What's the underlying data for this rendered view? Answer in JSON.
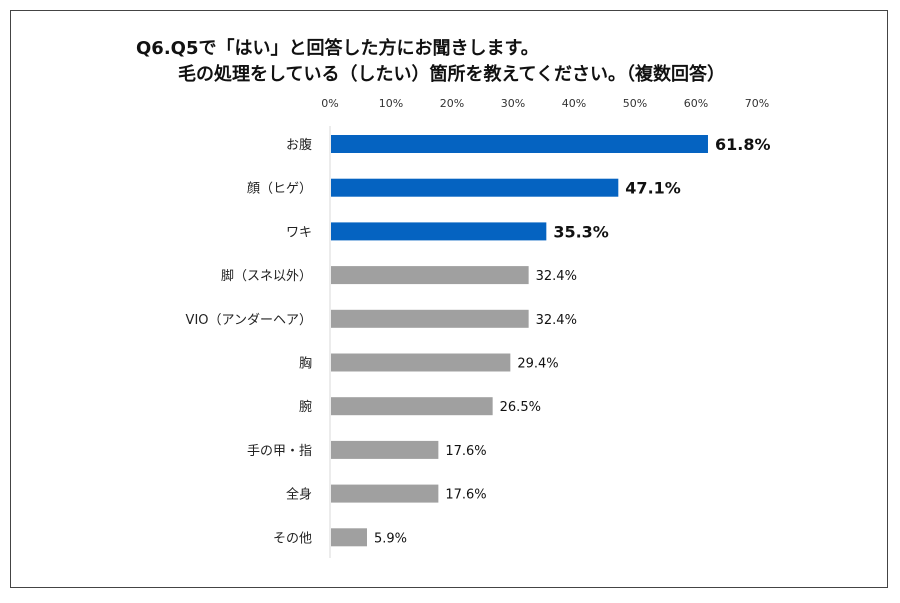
{
  "chart_data": {
    "type": "bar",
    "orientation": "horizontal",
    "title": [
      "Q6.Q5で「はい」と回答した方にお聞きします。",
      "毛の処理をしている（したい）箇所を教えてください。（複数回答）"
    ],
    "categories": [
      "お腹",
      "顔（ヒゲ）",
      "ワキ",
      "脚（スネ以外）",
      "VIO（アンダーヘア）",
      "胸",
      "腕",
      "手の甲・指",
      "全身",
      "その他"
    ],
    "values": [
      61.8,
      47.1,
      35.3,
      32.4,
      32.4,
      29.4,
      26.5,
      17.6,
      17.6,
      5.9
    ],
    "data_labels": [
      "61.8%",
      "47.1%",
      "35.3%",
      "32.4%",
      "32.4%",
      "29.4%",
      "26.5%",
      "17.6%",
      "17.6%",
      "5.9%"
    ],
    "highlight_top": 3,
    "xlim": [
      0,
      70
    ],
    "xticks": [
      "0%",
      "10%",
      "20%",
      "30%",
      "40%",
      "50%",
      "60%",
      "70%"
    ],
    "tick_position": "top",
    "grid": false,
    "legend": "none",
    "colors": {
      "highlight": "#0563C1",
      "normal": "#A0A0A0",
      "axis": "#D9D9D9"
    }
  }
}
